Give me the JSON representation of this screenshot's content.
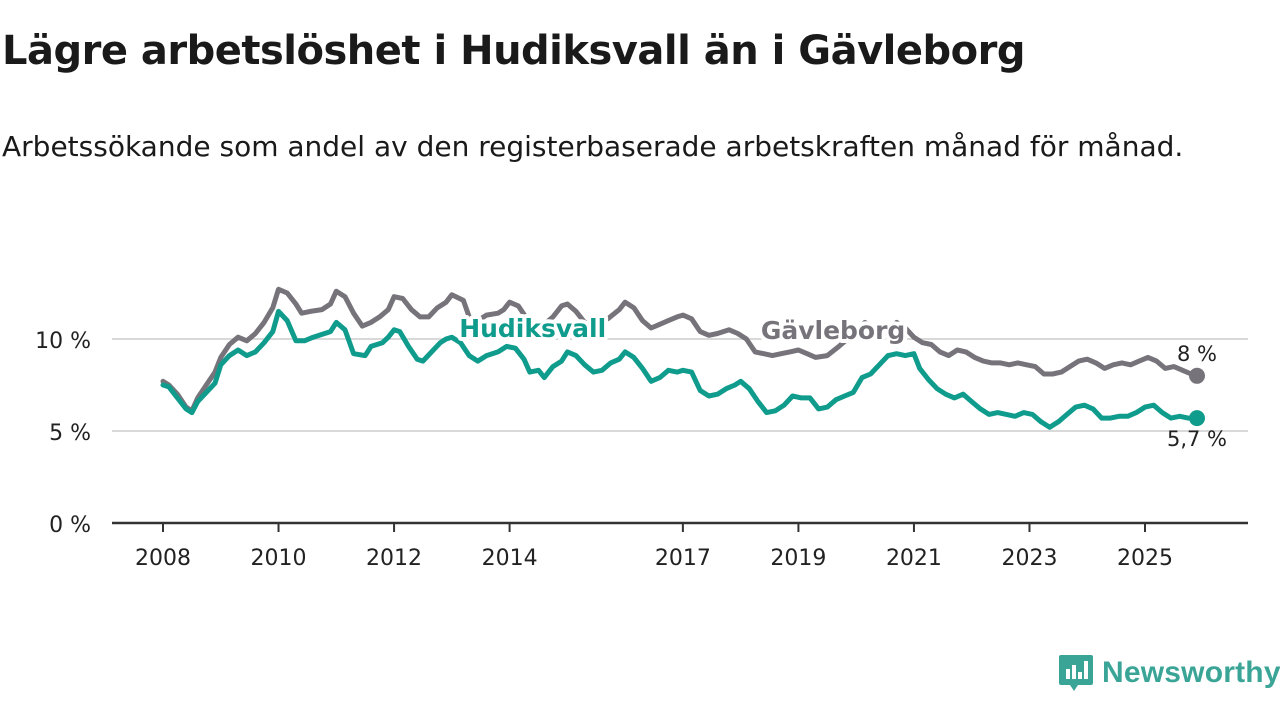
{
  "title": "Lägre arbetslöshet i Hudiksvall än i Gävleborg",
  "subtitle": "Arbetssökande som andel av den registerbaserade arbetskraften månad för månad.",
  "brand": {
    "name": "Newsworthy",
    "icon": "newsworthy-logo-icon",
    "color": "#3aa597"
  },
  "chart_data": {
    "type": "line",
    "title": "Lägre arbetslöshet i Hudiksvall än i Gävleborg",
    "xlabel": "",
    "ylabel": "",
    "x_range": [
      2008.0,
      2025.9
    ],
    "ylim": [
      0,
      13
    ],
    "y_ticks": [
      0,
      5,
      10
    ],
    "y_tick_labels": [
      "0 %",
      "5 %",
      "10 %"
    ],
    "x_ticks": [
      2008,
      2010,
      2012,
      2014,
      2017,
      2019,
      2021,
      2023,
      2025
    ],
    "x_tick_labels": [
      "2008",
      "2010",
      "2012",
      "2014",
      "2017",
      "2019",
      "2021",
      "2023",
      "2025"
    ],
    "grid": true,
    "series": [
      {
        "name": "Gävleborg",
        "color": "#76737a",
        "end_label": "8 %",
        "points": [
          [
            2008.0,
            7.7
          ],
          [
            2008.1,
            7.5
          ],
          [
            2008.25,
            7.0
          ],
          [
            2008.4,
            6.3
          ],
          [
            2008.5,
            6.1
          ],
          [
            2008.6,
            6.8
          ],
          [
            2008.75,
            7.5
          ],
          [
            2008.9,
            8.2
          ],
          [
            2009.0,
            9.0
          ],
          [
            2009.15,
            9.7
          ],
          [
            2009.3,
            10.1
          ],
          [
            2009.45,
            9.9
          ],
          [
            2009.6,
            10.3
          ],
          [
            2009.75,
            10.9
          ],
          [
            2009.9,
            11.7
          ],
          [
            2010.0,
            12.7
          ],
          [
            2010.15,
            12.5
          ],
          [
            2010.3,
            11.9
          ],
          [
            2010.4,
            11.4
          ],
          [
            2010.55,
            11.5
          ],
          [
            2010.75,
            11.6
          ],
          [
            2010.9,
            11.9
          ],
          [
            2011.0,
            12.6
          ],
          [
            2011.15,
            12.3
          ],
          [
            2011.3,
            11.4
          ],
          [
            2011.45,
            10.7
          ],
          [
            2011.6,
            10.9
          ],
          [
            2011.75,
            11.2
          ],
          [
            2011.9,
            11.6
          ],
          [
            2012.0,
            12.3
          ],
          [
            2012.15,
            12.2
          ],
          [
            2012.3,
            11.6
          ],
          [
            2012.45,
            11.2
          ],
          [
            2012.6,
            11.2
          ],
          [
            2012.75,
            11.7
          ],
          [
            2012.9,
            12.0
          ],
          [
            2013.0,
            12.4
          ],
          [
            2013.2,
            12.1
          ],
          [
            2013.3,
            11.2
          ],
          [
            2013.45,
            11.0
          ],
          [
            2013.6,
            11.3
          ],
          [
            2013.8,
            11.4
          ],
          [
            2013.9,
            11.6
          ],
          [
            2014.0,
            12.0
          ],
          [
            2014.15,
            11.8
          ],
          [
            2014.3,
            11.1
          ],
          [
            2014.45,
            10.8
          ],
          [
            2014.6,
            10.8
          ],
          [
            2014.75,
            11.2
          ],
          [
            2014.9,
            11.8
          ],
          [
            2015.0,
            11.9
          ],
          [
            2015.15,
            11.5
          ],
          [
            2015.3,
            10.9
          ],
          [
            2015.5,
            10.8
          ],
          [
            2015.7,
            11.1
          ],
          [
            2015.9,
            11.6
          ],
          [
            2016.0,
            12.0
          ],
          [
            2016.15,
            11.7
          ],
          [
            2016.3,
            11.0
          ],
          [
            2016.45,
            10.6
          ],
          [
            2016.6,
            10.8
          ],
          [
            2016.75,
            11.0
          ],
          [
            2016.9,
            11.2
          ],
          [
            2017.0,
            11.3
          ],
          [
            2017.15,
            11.1
          ],
          [
            2017.3,
            10.4
          ],
          [
            2017.45,
            10.2
          ],
          [
            2017.6,
            10.3
          ],
          [
            2017.8,
            10.5
          ],
          [
            2017.95,
            10.3
          ],
          [
            2018.1,
            10.0
          ],
          [
            2018.25,
            9.3
          ],
          [
            2018.4,
            9.2
          ],
          [
            2018.55,
            9.1
          ],
          [
            2018.7,
            9.2
          ],
          [
            2018.85,
            9.3
          ],
          [
            2019.0,
            9.4
          ],
          [
            2019.15,
            9.2
          ],
          [
            2019.3,
            9.0
          ],
          [
            2019.5,
            9.1
          ],
          [
            2019.7,
            9.6
          ],
          [
            2019.85,
            10.0
          ],
          [
            2020.0,
            10.2
          ],
          [
            2020.15,
            10.9
          ],
          [
            2020.3,
            10.6
          ],
          [
            2020.5,
            10.4
          ],
          [
            2020.7,
            10.9
          ],
          [
            2020.85,
            10.6
          ],
          [
            2021.0,
            10.1
          ],
          [
            2021.15,
            9.8
          ],
          [
            2021.3,
            9.7
          ],
          [
            2021.45,
            9.3
          ],
          [
            2021.6,
            9.1
          ],
          [
            2021.75,
            9.4
          ],
          [
            2021.9,
            9.3
          ],
          [
            2022.05,
            9.0
          ],
          [
            2022.2,
            8.8
          ],
          [
            2022.35,
            8.7
          ],
          [
            2022.5,
            8.7
          ],
          [
            2022.65,
            8.6
          ],
          [
            2022.8,
            8.7
          ],
          [
            2022.95,
            8.6
          ],
          [
            2023.1,
            8.5
          ],
          [
            2023.25,
            8.1
          ],
          [
            2023.4,
            8.1
          ],
          [
            2023.55,
            8.2
          ],
          [
            2023.7,
            8.5
          ],
          [
            2023.85,
            8.8
          ],
          [
            2024.0,
            8.9
          ],
          [
            2024.15,
            8.7
          ],
          [
            2024.3,
            8.4
          ],
          [
            2024.45,
            8.6
          ],
          [
            2024.6,
            8.7
          ],
          [
            2024.75,
            8.6
          ],
          [
            2024.9,
            8.8
          ],
          [
            2025.05,
            9.0
          ],
          [
            2025.2,
            8.8
          ],
          [
            2025.35,
            8.4
          ],
          [
            2025.5,
            8.5
          ],
          [
            2025.65,
            8.3
          ],
          [
            2025.8,
            8.1
          ],
          [
            2025.9,
            8.0
          ]
        ]
      },
      {
        "name": "Hudiksvall",
        "color": "#109c8d",
        "end_label": "5,7 %",
        "points": [
          [
            2008.0,
            7.5
          ],
          [
            2008.1,
            7.4
          ],
          [
            2008.25,
            6.8
          ],
          [
            2008.4,
            6.2
          ],
          [
            2008.5,
            6.0
          ],
          [
            2008.6,
            6.6
          ],
          [
            2008.75,
            7.1
          ],
          [
            2008.9,
            7.6
          ],
          [
            2009.0,
            8.6
          ],
          [
            2009.15,
            9.1
          ],
          [
            2009.3,
            9.4
          ],
          [
            2009.45,
            9.1
          ],
          [
            2009.6,
            9.3
          ],
          [
            2009.75,
            9.8
          ],
          [
            2009.9,
            10.4
          ],
          [
            2010.0,
            11.5
          ],
          [
            2010.15,
            11.0
          ],
          [
            2010.3,
            9.9
          ],
          [
            2010.45,
            9.9
          ],
          [
            2010.6,
            10.1
          ],
          [
            2010.8,
            10.3
          ],
          [
            2010.9,
            10.4
          ],
          [
            2011.0,
            10.9
          ],
          [
            2011.15,
            10.5
          ],
          [
            2011.3,
            9.2
          ],
          [
            2011.5,
            9.1
          ],
          [
            2011.6,
            9.6
          ],
          [
            2011.8,
            9.8
          ],
          [
            2011.9,
            10.1
          ],
          [
            2012.0,
            10.5
          ],
          [
            2012.1,
            10.4
          ],
          [
            2012.25,
            9.6
          ],
          [
            2012.4,
            8.9
          ],
          [
            2012.5,
            8.8
          ],
          [
            2012.65,
            9.3
          ],
          [
            2012.8,
            9.8
          ],
          [
            2012.9,
            10.0
          ],
          [
            2013.0,
            10.1
          ],
          [
            2013.15,
            9.8
          ],
          [
            2013.3,
            9.1
          ],
          [
            2013.45,
            8.8
          ],
          [
            2013.6,
            9.1
          ],
          [
            2013.8,
            9.3
          ],
          [
            2013.95,
            9.6
          ],
          [
            2014.1,
            9.5
          ],
          [
            2014.25,
            8.9
          ],
          [
            2014.35,
            8.2
          ],
          [
            2014.5,
            8.3
          ],
          [
            2014.6,
            7.9
          ],
          [
            2014.75,
            8.5
          ],
          [
            2014.9,
            8.8
          ],
          [
            2015.0,
            9.3
          ],
          [
            2015.15,
            9.1
          ],
          [
            2015.3,
            8.6
          ],
          [
            2015.45,
            8.2
          ],
          [
            2015.6,
            8.3
          ],
          [
            2015.75,
            8.7
          ],
          [
            2015.9,
            8.9
          ],
          [
            2016.0,
            9.3
          ],
          [
            2016.15,
            9.0
          ],
          [
            2016.3,
            8.4
          ],
          [
            2016.45,
            7.7
          ],
          [
            2016.6,
            7.9
          ],
          [
            2016.75,
            8.3
          ],
          [
            2016.9,
            8.2
          ],
          [
            2017.0,
            8.3
          ],
          [
            2017.15,
            8.2
          ],
          [
            2017.3,
            7.2
          ],
          [
            2017.45,
            6.9
          ],
          [
            2017.6,
            7.0
          ],
          [
            2017.75,
            7.3
          ],
          [
            2017.9,
            7.5
          ],
          [
            2018.0,
            7.7
          ],
          [
            2018.15,
            7.3
          ],
          [
            2018.3,
            6.6
          ],
          [
            2018.45,
            6.0
          ],
          [
            2018.6,
            6.1
          ],
          [
            2018.75,
            6.4
          ],
          [
            2018.9,
            6.9
          ],
          [
            2019.05,
            6.8
          ],
          [
            2019.2,
            6.8
          ],
          [
            2019.35,
            6.2
          ],
          [
            2019.5,
            6.3
          ],
          [
            2019.65,
            6.7
          ],
          [
            2019.8,
            6.9
          ],
          [
            2019.95,
            7.1
          ],
          [
            2020.1,
            7.9
          ],
          [
            2020.25,
            8.1
          ],
          [
            2020.4,
            8.6
          ],
          [
            2020.55,
            9.1
          ],
          [
            2020.7,
            9.2
          ],
          [
            2020.85,
            9.1
          ],
          [
            2021.0,
            9.2
          ],
          [
            2021.1,
            8.4
          ],
          [
            2021.25,
            7.8
          ],
          [
            2021.4,
            7.3
          ],
          [
            2021.55,
            7.0
          ],
          [
            2021.7,
            6.8
          ],
          [
            2021.85,
            7.0
          ],
          [
            2022.0,
            6.6
          ],
          [
            2022.15,
            6.2
          ],
          [
            2022.3,
            5.9
          ],
          [
            2022.45,
            6.0
          ],
          [
            2022.6,
            5.9
          ],
          [
            2022.75,
            5.8
          ],
          [
            2022.9,
            6.0
          ],
          [
            2023.05,
            5.9
          ],
          [
            2023.2,
            5.5
          ],
          [
            2023.35,
            5.2
          ],
          [
            2023.5,
            5.5
          ],
          [
            2023.65,
            5.9
          ],
          [
            2023.8,
            6.3
          ],
          [
            2023.95,
            6.4
          ],
          [
            2024.1,
            6.2
          ],
          [
            2024.25,
            5.7
          ],
          [
            2024.4,
            5.7
          ],
          [
            2024.55,
            5.8
          ],
          [
            2024.7,
            5.8
          ],
          [
            2024.85,
            6.0
          ],
          [
            2025.0,
            6.3
          ],
          [
            2025.15,
            6.4
          ],
          [
            2025.3,
            6.0
          ],
          [
            2025.45,
            5.7
          ],
          [
            2025.6,
            5.8
          ],
          [
            2025.75,
            5.7
          ],
          [
            2025.9,
            5.7
          ]
        ]
      }
    ],
    "annotations": [
      {
        "text": "Hudiksvall",
        "series": "Hudiksvall",
        "x": 2014.4,
        "y": 10.1
      },
      {
        "text": "Gävleborg",
        "series": "Gävleborg",
        "x": 2019.6,
        "y": 10.0
      }
    ]
  }
}
